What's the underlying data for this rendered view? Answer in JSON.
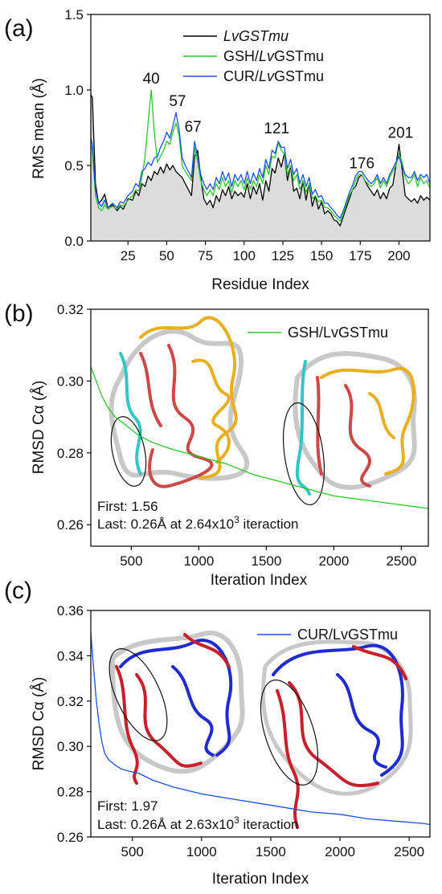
{
  "chart_data": [
    {
      "panel": "(a)",
      "type": "line",
      "xlabel": "Residue Index",
      "ylabel": "RMS mean (Å)",
      "xlim": [
        1,
        220
      ],
      "ylim": [
        0,
        1.5
      ],
      "xticks": [
        25,
        50,
        75,
        100,
        125,
        150,
        175,
        200
      ],
      "yticks": [
        0.0,
        0.5,
        1.0,
        1.5
      ],
      "ytick_labels": [
        "0.0",
        "0.5",
        "1.0",
        "1.5"
      ],
      "legend_position": "top-center",
      "peak_labels": [
        {
          "text": "40",
          "x": 40,
          "y": 1.0
        },
        {
          "text": "57",
          "x": 57,
          "y": 0.85
        },
        {
          "text": "67",
          "x": 67,
          "y": 0.68
        },
        {
          "text": "121",
          "x": 121,
          "y": 0.67
        },
        {
          "text": "176",
          "x": 176,
          "y": 0.44
        },
        {
          "text": "201",
          "x": 201,
          "y": 0.64
        }
      ],
      "series": [
        {
          "name": "LvGSTmu",
          "legend_parts": [
            {
              "text": "LvGSTmu",
              "italic": true
            }
          ],
          "color": "#000000",
          "fill": "#dcdcdc",
          "x": [
            1,
            2,
            4,
            6,
            8,
            10,
            12,
            15,
            18,
            20,
            22,
            25,
            28,
            30,
            32,
            34,
            36,
            38,
            40,
            42,
            44,
            46,
            48,
            50,
            52,
            54,
            56,
            58,
            60,
            62,
            64,
            66,
            68,
            70,
            72,
            74,
            76,
            78,
            80,
            82,
            84,
            86,
            88,
            90,
            92,
            94,
            96,
            98,
            100,
            102,
            104,
            106,
            108,
            110,
            112,
            114,
            116,
            118,
            120,
            122,
            124,
            126,
            128,
            130,
            132,
            134,
            136,
            138,
            140,
            142,
            144,
            146,
            148,
            150,
            152,
            154,
            156,
            158,
            160,
            162,
            164,
            166,
            168,
            170,
            172,
            174,
            176,
            178,
            180,
            182,
            184,
            186,
            188,
            190,
            192,
            194,
            196,
            198,
            200,
            202,
            204,
            206,
            208,
            210,
            212,
            214,
            216,
            218,
            220
          ],
          "y": [
            0.97,
            0.95,
            0.38,
            0.25,
            0.27,
            0.31,
            0.22,
            0.24,
            0.2,
            0.23,
            0.21,
            0.28,
            0.27,
            0.33,
            0.3,
            0.38,
            0.36,
            0.43,
            0.4,
            0.46,
            0.44,
            0.49,
            0.45,
            0.51,
            0.47,
            0.5,
            0.46,
            0.44,
            0.42,
            0.38,
            0.34,
            0.3,
            0.56,
            0.6,
            0.42,
            0.28,
            0.24,
            0.27,
            0.22,
            0.3,
            0.26,
            0.34,
            0.3,
            0.36,
            0.28,
            0.33,
            0.3,
            0.32,
            0.29,
            0.38,
            0.28,
            0.36,
            0.31,
            0.38,
            0.27,
            0.4,
            0.33,
            0.48,
            0.45,
            0.55,
            0.49,
            0.58,
            0.4,
            0.5,
            0.33,
            0.35,
            0.28,
            0.4,
            0.27,
            0.38,
            0.23,
            0.3,
            0.21,
            0.26,
            0.18,
            0.2,
            0.18,
            0.14,
            0.13,
            0.1,
            0.16,
            0.22,
            0.28,
            0.34,
            0.36,
            0.42,
            0.44,
            0.4,
            0.36,
            0.33,
            0.3,
            0.34,
            0.28,
            0.32,
            0.28,
            0.35,
            0.37,
            0.5,
            0.64,
            0.48,
            0.3,
            0.28,
            0.26,
            0.28,
            0.25,
            0.3,
            0.27,
            0.29,
            0.27
          ]
        },
        {
          "name": "GSH/LvGSTmu",
          "legend_parts": [
            {
              "text": "GSH/",
              "italic": false
            },
            {
              "text": "Lv",
              "italic": true
            },
            {
              "text": "GSTmu",
              "italic": false
            }
          ],
          "color": "#2cc52c",
          "x": [
            1,
            2,
            4,
            6,
            8,
            10,
            12,
            15,
            18,
            20,
            22,
            25,
            28,
            30,
            32,
            34,
            36,
            38,
            40,
            42,
            44,
            46,
            48,
            50,
            52,
            54,
            56,
            58,
            60,
            62,
            64,
            66,
            68,
            70,
            72,
            74,
            76,
            78,
            80,
            82,
            84,
            86,
            88,
            90,
            92,
            94,
            96,
            98,
            100,
            102,
            104,
            106,
            108,
            110,
            112,
            114,
            116,
            118,
            120,
            122,
            124,
            126,
            128,
            130,
            132,
            134,
            136,
            138,
            140,
            142,
            144,
            146,
            148,
            150,
            152,
            154,
            156,
            158,
            160,
            162,
            164,
            166,
            168,
            170,
            172,
            174,
            176,
            178,
            180,
            182,
            184,
            186,
            188,
            190,
            192,
            194,
            196,
            198,
            200,
            202,
            204,
            206,
            208,
            210,
            212,
            214,
            216,
            218,
            220
          ],
          "y": [
            0.63,
            0.6,
            0.3,
            0.22,
            0.2,
            0.24,
            0.21,
            0.23,
            0.21,
            0.24,
            0.23,
            0.27,
            0.3,
            0.34,
            0.33,
            0.42,
            0.55,
            0.78,
            1.0,
            0.72,
            0.52,
            0.56,
            0.6,
            0.66,
            0.64,
            0.72,
            0.78,
            0.7,
            0.5,
            0.46,
            0.43,
            0.4,
            0.62,
            0.52,
            0.4,
            0.34,
            0.3,
            0.34,
            0.3,
            0.38,
            0.34,
            0.42,
            0.36,
            0.4,
            0.32,
            0.4,
            0.36,
            0.4,
            0.34,
            0.42,
            0.34,
            0.4,
            0.36,
            0.44,
            0.38,
            0.5,
            0.44,
            0.56,
            0.55,
            0.65,
            0.6,
            0.58,
            0.44,
            0.5,
            0.4,
            0.44,
            0.34,
            0.4,
            0.32,
            0.38,
            0.28,
            0.3,
            0.26,
            0.27,
            0.22,
            0.22,
            0.2,
            0.17,
            0.15,
            0.13,
            0.18,
            0.24,
            0.3,
            0.34,
            0.4,
            0.44,
            0.44,
            0.4,
            0.38,
            0.36,
            0.38,
            0.42,
            0.35,
            0.4,
            0.36,
            0.42,
            0.46,
            0.5,
            0.58,
            0.52,
            0.42,
            0.38,
            0.4,
            0.44,
            0.36,
            0.42,
            0.38,
            0.4,
            0.35
          ]
        },
        {
          "name": "CUR/LvGSTmu",
          "legend_parts": [
            {
              "text": "CUR/",
              "italic": false
            },
            {
              "text": "Lv",
              "italic": true
            },
            {
              "text": "GSTmu",
              "italic": false
            }
          ],
          "color": "#1a4fe0",
          "x": [
            1,
            2,
            4,
            6,
            8,
            10,
            12,
            15,
            18,
            20,
            22,
            25,
            28,
            30,
            32,
            34,
            36,
            38,
            40,
            42,
            44,
            46,
            48,
            50,
            52,
            54,
            56,
            58,
            60,
            62,
            64,
            66,
            68,
            70,
            72,
            74,
            76,
            78,
            80,
            82,
            84,
            86,
            88,
            90,
            92,
            94,
            96,
            98,
            100,
            102,
            104,
            106,
            108,
            110,
            112,
            114,
            116,
            118,
            120,
            122,
            124,
            126,
            128,
            130,
            132,
            134,
            136,
            138,
            140,
            142,
            144,
            146,
            148,
            150,
            152,
            154,
            156,
            158,
            160,
            162,
            164,
            166,
            168,
            170,
            172,
            174,
            176,
            178,
            180,
            182,
            184,
            186,
            188,
            190,
            192,
            194,
            196,
            198,
            200,
            202,
            204,
            206,
            208,
            210,
            212,
            214,
            216,
            218,
            220
          ],
          "y": [
            0.68,
            0.64,
            0.34,
            0.25,
            0.23,
            0.27,
            0.22,
            0.25,
            0.22,
            0.26,
            0.25,
            0.3,
            0.33,
            0.38,
            0.36,
            0.46,
            0.48,
            0.52,
            0.5,
            0.55,
            0.56,
            0.62,
            0.66,
            0.72,
            0.68,
            0.76,
            0.85,
            0.74,
            0.55,
            0.5,
            0.46,
            0.42,
            0.66,
            0.56,
            0.44,
            0.38,
            0.34,
            0.38,
            0.34,
            0.42,
            0.38,
            0.46,
            0.4,
            0.45,
            0.36,
            0.44,
            0.4,
            0.44,
            0.38,
            0.46,
            0.38,
            0.45,
            0.4,
            0.48,
            0.42,
            0.54,
            0.48,
            0.6,
            0.58,
            0.66,
            0.62,
            0.62,
            0.48,
            0.54,
            0.44,
            0.48,
            0.38,
            0.44,
            0.36,
            0.42,
            0.31,
            0.34,
            0.29,
            0.3,
            0.25,
            0.25,
            0.22,
            0.2,
            0.17,
            0.15,
            0.2,
            0.26,
            0.32,
            0.37,
            0.43,
            0.46,
            0.46,
            0.43,
            0.4,
            0.38,
            0.4,
            0.44,
            0.38,
            0.42,
            0.38,
            0.44,
            0.48,
            0.52,
            0.56,
            0.5,
            0.44,
            0.42,
            0.42,
            0.46,
            0.4,
            0.44,
            0.42,
            0.44,
            0.38
          ]
        }
      ]
    },
    {
      "panel": "(b)",
      "type": "line",
      "xlabel": "Iteration Index",
      "ylabel": "RMSD Cα (Å)",
      "xlim": [
        200,
        2700
      ],
      "ylim": [
        0.254,
        0.32
      ],
      "xticks": [
        500,
        1000,
        1500,
        2000,
        2500
      ],
      "yticks": [
        0.26,
        0.28,
        0.3,
        0.32
      ],
      "ytick_labels": [
        "0.26",
        "0.28",
        "0.30",
        "0.32"
      ],
      "legend_position": "top-right",
      "annotation": {
        "first": "First: 1.56",
        "last_prefix": "Last: 0.26Å at 2.64x10",
        "last_exp": "3",
        "last_suffix": " iteraction"
      },
      "series": [
        {
          "name": "GSH/LvGSTmu",
          "legend_parts": [
            {
              "text": "GSH/LvGSTmu",
              "italic": false
            }
          ],
          "color": "#2cc52c",
          "x": [
            200,
            240,
            280,
            320,
            380,
            450,
            550,
            650,
            800,
            1000,
            1200,
            1400,
            1600,
            1800,
            2000,
            2200,
            2400,
            2600,
            2700
          ],
          "y": [
            0.304,
            0.3,
            0.296,
            0.293,
            0.29,
            0.288,
            0.285,
            0.283,
            0.281,
            0.279,
            0.277,
            0.274,
            0.272,
            0.27,
            0.268,
            0.267,
            0.266,
            0.265,
            0.2645
          ]
        }
      ]
    },
    {
      "panel": "(c)",
      "type": "line",
      "xlabel": "Iteration Index",
      "ylabel": "RMSD Cα (Å)",
      "xlim": [
        200,
        2650
      ],
      "ylim": [
        0.26,
        0.36
      ],
      "xticks": [
        500,
        1000,
        1500,
        2000,
        2500
      ],
      "yticks": [
        0.26,
        0.28,
        0.3,
        0.32,
        0.34,
        0.36
      ],
      "ytick_labels": [
        "0.26",
        "0.28",
        "0.30",
        "0.32",
        "0.34",
        "0.36"
      ],
      "legend_position": "top-right",
      "annotation": {
        "first": "First: 1.97",
        "last_prefix": "Last: 0.26Å at 2.63x10",
        "last_exp": "3",
        "last_suffix": " iteraction"
      },
      "series": [
        {
          "name": "CUR/LvGSTmu",
          "legend_parts": [
            {
              "text": "CUR/LvGSTmu",
              "italic": false
            }
          ],
          "color": "#1a4fe0",
          "x": [
            200,
            220,
            240,
            260,
            280,
            300,
            330,
            370,
            420,
            480,
            550,
            650,
            800,
            1000,
            1200,
            1400,
            1600,
            1800,
            2000,
            2200,
            2400,
            2600,
            2650
          ],
          "y": [
            0.35,
            0.335,
            0.32,
            0.31,
            0.302,
            0.297,
            0.294,
            0.292,
            0.29,
            0.289,
            0.288,
            0.285,
            0.282,
            0.279,
            0.277,
            0.275,
            0.273,
            0.271,
            0.27,
            0.268,
            0.267,
            0.266,
            0.2655
          ]
        }
      ]
    }
  ]
}
